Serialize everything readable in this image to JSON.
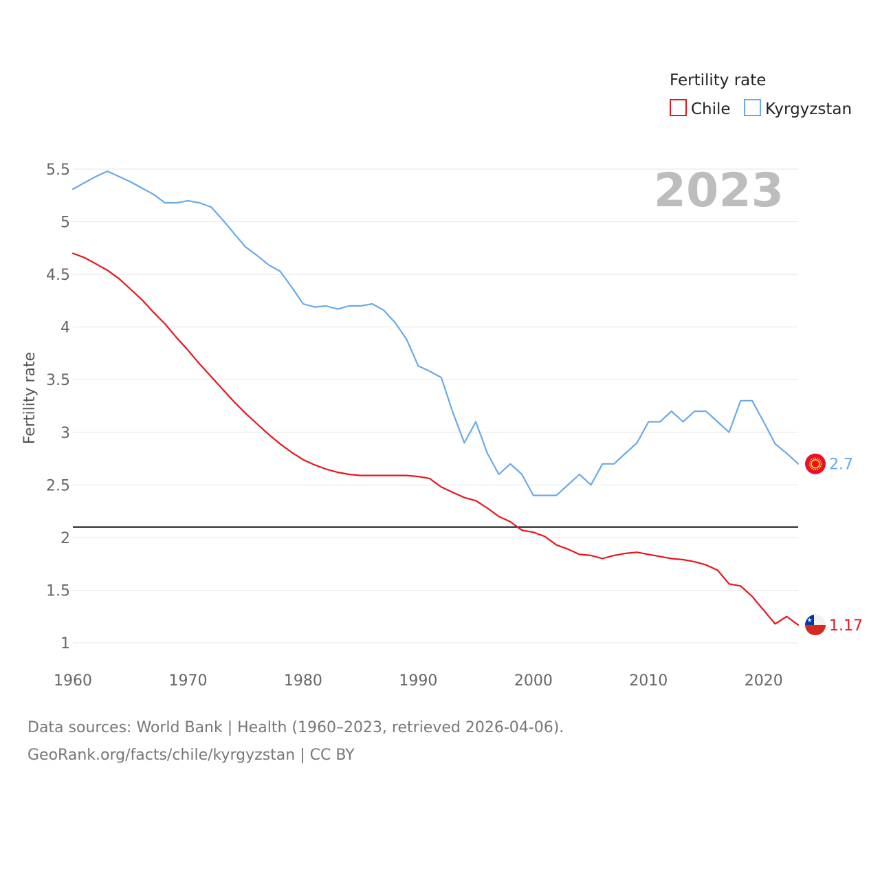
{
  "chart_data": {
    "type": "line",
    "title": "",
    "xlabel": "",
    "ylabel": "Fertility rate",
    "year_label": "2023",
    "xlim": [
      1960,
      2023
    ],
    "ylim": [
      0.85,
      5.65
    ],
    "x_ticks": [
      1960,
      1970,
      1980,
      1990,
      2000,
      2010,
      2020
    ],
    "y_ticks": [
      1,
      1.5,
      2,
      2.5,
      3,
      3.5,
      4,
      4.5,
      5,
      5.5
    ],
    "y_tick_labels": [
      "1",
      "1.5",
      "2",
      "2.5",
      "3",
      "3.5",
      "4",
      "4.5",
      "5",
      "5.5"
    ],
    "reference_line": {
      "value": 2.1,
      "color": "#000000"
    },
    "legend": {
      "title": "Fertility rate",
      "position": "top-right"
    },
    "x": [
      1960,
      1961,
      1962,
      1963,
      1964,
      1965,
      1966,
      1967,
      1968,
      1969,
      1970,
      1971,
      1972,
      1973,
      1974,
      1975,
      1976,
      1977,
      1978,
      1979,
      1980,
      1981,
      1982,
      1983,
      1984,
      1985,
      1986,
      1987,
      1988,
      1989,
      1990,
      1991,
      1992,
      1993,
      1994,
      1995,
      1996,
      1997,
      1998,
      1999,
      2000,
      2001,
      2002,
      2003,
      2004,
      2005,
      2006,
      2007,
      2008,
      2009,
      2010,
      2011,
      2012,
      2013,
      2014,
      2015,
      2016,
      2017,
      2018,
      2019,
      2020,
      2021,
      2022,
      2023
    ],
    "series": [
      {
        "name": "Chile",
        "color": "#e8141c",
        "end_label": "1.17",
        "values": [
          4.7,
          4.66,
          4.6,
          4.54,
          4.46,
          4.36,
          4.26,
          4.14,
          4.03,
          3.9,
          3.78,
          3.65,
          3.53,
          3.41,
          3.29,
          3.18,
          3.08,
          2.98,
          2.89,
          2.81,
          2.74,
          2.69,
          2.65,
          2.62,
          2.6,
          2.59,
          2.59,
          2.59,
          2.59,
          2.59,
          2.58,
          2.56,
          2.48,
          2.43,
          2.38,
          2.35,
          2.28,
          2.2,
          2.15,
          2.07,
          2.05,
          2.01,
          1.93,
          1.89,
          1.84,
          1.83,
          1.8,
          1.83,
          1.85,
          1.86,
          1.84,
          1.82,
          1.8,
          1.79,
          1.77,
          1.74,
          1.69,
          1.56,
          1.54,
          1.44,
          1.31,
          1.18,
          1.25,
          1.17
        ]
      },
      {
        "name": "Kyrgyzstan",
        "color": "#66aae8",
        "end_label": "2.7",
        "values": [
          5.31,
          5.37,
          5.43,
          5.48,
          5.43,
          5.38,
          5.32,
          5.26,
          5.18,
          5.18,
          5.2,
          5.18,
          5.14,
          5.02,
          4.89,
          4.76,
          4.68,
          4.59,
          4.53,
          4.38,
          4.22,
          4.19,
          4.2,
          4.17,
          4.2,
          4.2,
          4.22,
          4.16,
          4.04,
          3.88,
          3.63,
          3.58,
          3.52,
          3.19,
          2.9,
          3.1,
          2.8,
          2.6,
          2.7,
          2.6,
          2.4,
          2.4,
          2.4,
          2.5,
          2.6,
          2.5,
          2.7,
          2.7,
          2.8,
          2.9,
          3.1,
          3.1,
          3.2,
          3.1,
          3.2,
          3.2,
          3.1,
          3.0,
          3.3,
          3.3,
          3.1,
          2.89,
          2.8,
          2.7
        ]
      }
    ]
  },
  "footer": {
    "sources": "Data sources: World Bank | Health (1960–2023, retrieved 2026-04-06).",
    "link": "GeoRank.org/facts/chile/kyrgyzstan | CC BY"
  }
}
